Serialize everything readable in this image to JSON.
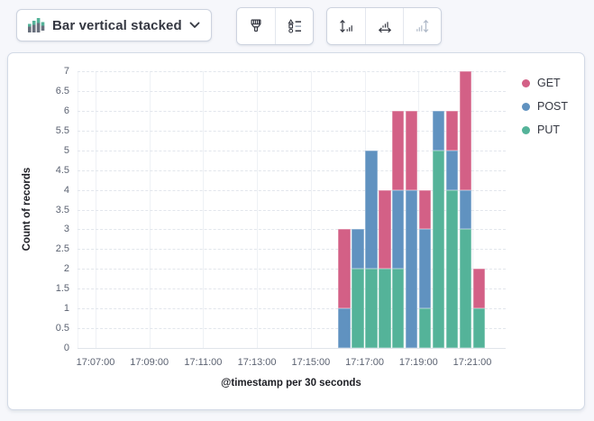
{
  "toolbar": {
    "chart_switcher": {
      "label": "Bar vertical stacked",
      "icon": "bar-vertical-stacked-icon",
      "chevron_icon": "chevron-down-icon"
    },
    "style_group": {
      "buttons": [
        {
          "name": "visual-options",
          "icon": "brush-icon",
          "enabled": true
        },
        {
          "name": "legend-settings",
          "icon": "legend-icon",
          "enabled": true
        }
      ]
    },
    "axis_group": {
      "buttons": [
        {
          "name": "left-axis-settings",
          "icon": "axis-left-icon",
          "enabled": true
        },
        {
          "name": "bottom-axis-settings",
          "icon": "axis-bottom-icon",
          "enabled": true
        },
        {
          "name": "right-axis-settings",
          "icon": "axis-right-icon",
          "enabled": false
        }
      ]
    }
  },
  "chart_data": {
    "type": "bar",
    "stacked": true,
    "orientation": "vertical",
    "title": "",
    "ylabel": "Count of records",
    "xlabel": "@timestamp per 30 seconds",
    "ylim": [
      0,
      7
    ],
    "y_tick_step": 0.5,
    "grid": true,
    "x_tick_labels": [
      "17:07:00",
      "17:09:00",
      "17:11:00",
      "17:13:00",
      "17:15:00",
      "17:17:00",
      "17:19:00",
      "17:21:00"
    ],
    "x_range_minutes": [
      0,
      14
    ],
    "bucket_seconds": 30,
    "bar_start_offset_minutes": 9,
    "categories": [
      "17:16:00",
      "17:16:30",
      "17:17:00",
      "17:17:30",
      "17:18:00",
      "17:18:30",
      "17:19:00",
      "17:19:30",
      "17:20:00",
      "17:20:30",
      "17:21:00"
    ],
    "series": [
      {
        "name": "GET",
        "color": "#d36086",
        "values": [
          2,
          0,
          0,
          2,
          2,
          2,
          1,
          0,
          1,
          3,
          1
        ]
      },
      {
        "name": "POST",
        "color": "#6092c0",
        "values": [
          1,
          1,
          3,
          0,
          2,
          4,
          2,
          1,
          1,
          1,
          0
        ]
      },
      {
        "name": "PUT",
        "color": "#54b399",
        "values": [
          0,
          2,
          2,
          2,
          2,
          0,
          1,
          5,
          4,
          3,
          1
        ]
      }
    ],
    "stack_order_bottom_to_top": [
      "PUT",
      "POST",
      "GET"
    ],
    "legend": {
      "position": "right",
      "items": [
        "GET",
        "POST",
        "PUT"
      ]
    }
  }
}
